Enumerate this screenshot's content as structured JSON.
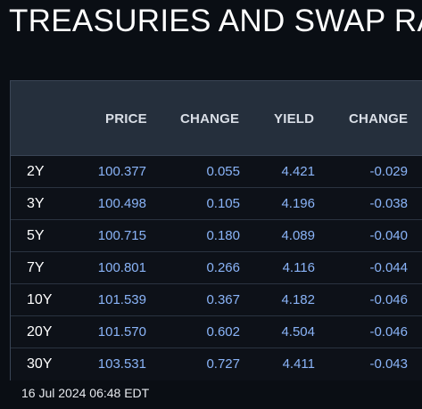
{
  "title": "TREASURIES AND SWAP RA",
  "table": {
    "headers": [
      "PRICE",
      "CHANGE",
      "YIELD",
      "CHANGE"
    ],
    "rows": [
      {
        "tenor": "2Y",
        "price": "100.377",
        "price_change": "0.055",
        "yield": "4.421",
        "yield_change": "-0.029"
      },
      {
        "tenor": "3Y",
        "price": "100.498",
        "price_change": "0.105",
        "yield": "4.196",
        "yield_change": "-0.038"
      },
      {
        "tenor": "5Y",
        "price": "100.715",
        "price_change": "0.180",
        "yield": "4.089",
        "yield_change": "-0.040"
      },
      {
        "tenor": "7Y",
        "price": "100.801",
        "price_change": "0.266",
        "yield": "4.116",
        "yield_change": "-0.044"
      },
      {
        "tenor": "10Y",
        "price": "101.539",
        "price_change": "0.367",
        "yield": "4.182",
        "yield_change": "-0.046"
      },
      {
        "tenor": "20Y",
        "price": "101.570",
        "price_change": "0.602",
        "yield": "4.504",
        "yield_change": "-0.046"
      },
      {
        "tenor": "30Y",
        "price": "103.531",
        "price_change": "0.727",
        "yield": "4.411",
        "yield_change": "-0.043"
      }
    ]
  },
  "timestamp": "16 Jul 2024 06:48 EDT",
  "colors": {
    "background": "#0a0e14",
    "header_bg": "#252f3c",
    "value_text": "#8ab4f8",
    "label_text": "#ffffff"
  }
}
